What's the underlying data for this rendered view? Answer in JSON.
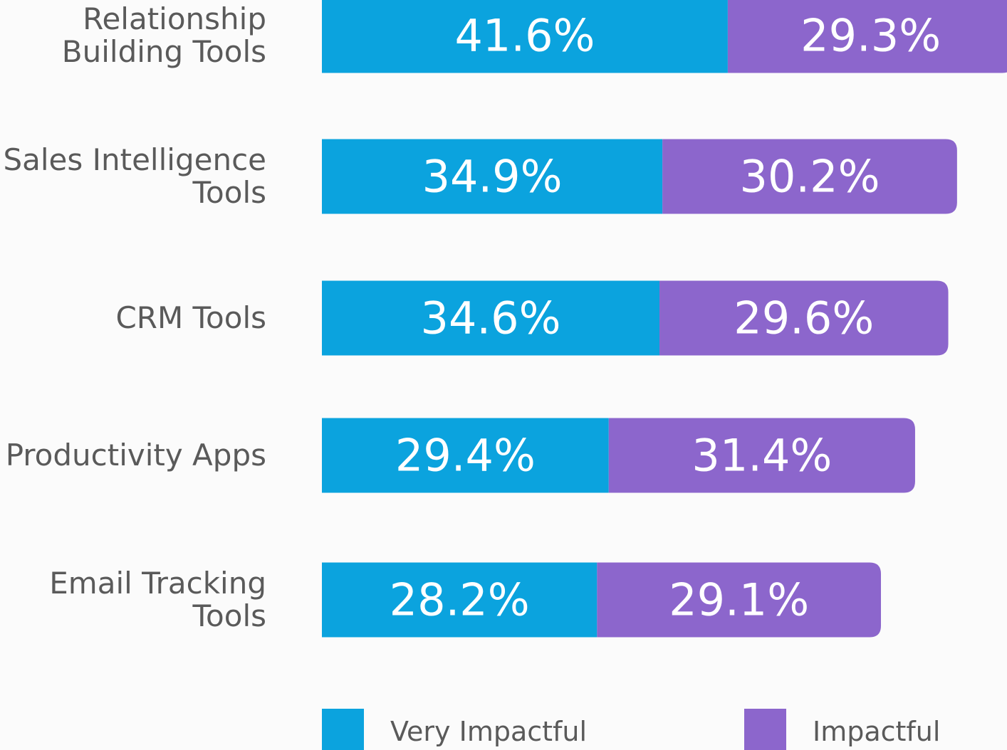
{
  "chart_data": {
    "type": "stacked-bar-horizontal",
    "categories": [
      "Relationship Building Tools",
      "Sales Intelligence Tools",
      "CRM Tools",
      "Productivity Apps",
      "Email Tracking Tools"
    ],
    "series": [
      {
        "name": "Very Impactful",
        "color": "#0ba3de",
        "values": [
          41.6,
          34.9,
          34.6,
          29.4,
          28.2
        ],
        "value_labels": [
          "41.6%",
          "34.9%",
          "34.6%",
          "29.4%",
          "28.2%"
        ]
      },
      {
        "name": "Impactful",
        "color": "#8c66cc",
        "values": [
          29.3,
          30.2,
          29.6,
          31.4,
          29.1
        ],
        "value_labels": [
          "29.3%",
          "30.2%",
          "29.6%",
          "31.4%",
          "29.1%"
        ]
      }
    ]
  }
}
